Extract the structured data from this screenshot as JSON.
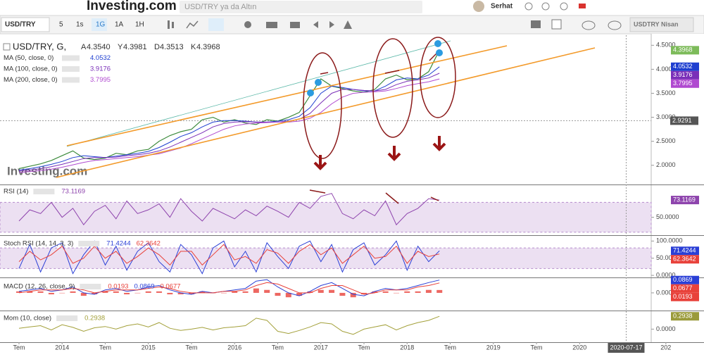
{
  "ui": {
    "logo": "Investing.com",
    "search": "USD/TRY ya da Altın",
    "user": "Serhat",
    "symbol": "USD/TRY",
    "intervals": [
      "5",
      "1s",
      "1G",
      "1A",
      "1H"
    ],
    "active_interval": 2,
    "contract": "USDTRY Nisan",
    "watermark": "Investing.com"
  },
  "chart_data": [
    {
      "type": "line",
      "title": "USD/TRY, G,",
      "ohlc": [
        {
          "label": "A",
          "value": "4.3540"
        },
        {
          "label": "Y",
          "value": "4.3981"
        },
        {
          "label": "D",
          "value": "4.3513"
        },
        {
          "label": "K",
          "value": "4.3968"
        }
      ],
      "x": [
        2013.5,
        2013.625,
        2013.75,
        2013.875,
        2014,
        2014.125,
        2014.25,
        2014.375,
        2014.5,
        2014.625,
        2014.75,
        2014.875,
        2015,
        2015.125,
        2015.25,
        2015.375,
        2015.5,
        2015.625,
        2015.75,
        2015.875,
        2016,
        2016.125,
        2016.25,
        2016.375,
        2016.5,
        2016.625,
        2016.75,
        2016.875,
        2017,
        2017.125,
        2017.25,
        2017.375,
        2017.5,
        2017.625,
        2017.75,
        2017.875,
        2018,
        2018.125,
        2018.25,
        2018.375
      ],
      "xlim": [
        2013.28,
        2020.83
      ],
      "ylim": [
        1.6,
        4.71
      ],
      "yticks": [
        {
          "value": 4.5,
          "label": "4.5000"
        },
        {
          "value": 4,
          "label": "4.0000"
        },
        {
          "value": 3.5,
          "label": "3.5000"
        },
        {
          "value": 3,
          "label": "3.0000"
        },
        {
          "value": 2.5,
          "label": "2.5000"
        },
        {
          "value": 2,
          "label": "2.0000"
        }
      ],
      "cursor": {
        "value": 2.9291
      },
      "series": [
        {
          "color": "#3d8b3d",
          "box": "#7dbb5a",
          "values": [
            1.93,
            1.98,
            2.03,
            2.1,
            2.2,
            2.3,
            2.15,
            2.12,
            2.15,
            2.25,
            2.22,
            2.3,
            2.33,
            2.5,
            2.62,
            2.7,
            2.75,
            2.95,
            3.0,
            2.9,
            2.95,
            2.88,
            2.85,
            2.95,
            2.92,
            3.0,
            3.1,
            3.45,
            3.8,
            3.65,
            3.6,
            3.55,
            3.52,
            3.58,
            3.8,
            3.88,
            3.78,
            3.8,
            3.95,
            4.3968
          ]
        },
        {
          "name": "MA (50, close, 0)",
          "color": "#1f3fd0",
          "box": "#1f3fd0",
          "values": [
            1.9,
            1.93,
            1.97,
            2.02,
            2.08,
            2.16,
            2.2,
            2.18,
            2.16,
            2.19,
            2.22,
            2.25,
            2.29,
            2.37,
            2.48,
            2.6,
            2.68,
            2.8,
            2.9,
            2.93,
            2.93,
            2.92,
            2.9,
            2.9,
            2.92,
            2.95,
            3.02,
            3.2,
            3.5,
            3.65,
            3.62,
            3.58,
            3.55,
            3.55,
            3.65,
            3.78,
            3.82,
            3.8,
            3.88,
            4.0532
          ]
        },
        {
          "name": "MA (100, close, 0)",
          "color": "#7a2fb8",
          "box": "#7a2fb8",
          "values": [
            1.88,
            1.9,
            1.93,
            1.97,
            2.02,
            2.08,
            2.14,
            2.16,
            2.16,
            2.17,
            2.2,
            2.22,
            2.25,
            2.3,
            2.38,
            2.48,
            2.58,
            2.68,
            2.8,
            2.87,
            2.9,
            2.91,
            2.9,
            2.9,
            2.9,
            2.92,
            2.96,
            3.08,
            3.3,
            3.5,
            3.58,
            3.58,
            3.56,
            3.55,
            3.58,
            3.68,
            3.75,
            3.78,
            3.82,
            3.9176
          ]
        },
        {
          "name": "MA (200, close, 0)",
          "color": "#b04ad0",
          "box": "#b04ad0",
          "values": [
            1.85,
            1.87,
            1.89,
            1.92,
            1.96,
            2.01,
            2.06,
            2.1,
            2.12,
            2.14,
            2.16,
            2.18,
            2.21,
            2.24,
            2.3,
            2.36,
            2.45,
            2.55,
            2.65,
            2.75,
            2.82,
            2.86,
            2.88,
            2.89,
            2.9,
            2.9,
            2.92,
            2.98,
            3.1,
            3.28,
            3.42,
            3.5,
            3.52,
            3.53,
            3.55,
            3.6,
            3.66,
            3.7,
            3.74,
            3.7995
          ]
        }
      ]
    },
    {
      "type": "line",
      "title": "RSI (14)",
      "x": [
        2013.5,
        2013.625,
        2013.75,
        2013.875,
        2014,
        2014.125,
        2014.25,
        2014.375,
        2014.5,
        2014.625,
        2014.75,
        2014.875,
        2015,
        2015.125,
        2015.25,
        2015.375,
        2015.5,
        2015.625,
        2015.75,
        2015.875,
        2016,
        2016.125,
        2016.25,
        2016.375,
        2016.5,
        2016.625,
        2016.75,
        2016.875,
        2017,
        2017.125,
        2017.25,
        2017.375,
        2017.5,
        2017.625,
        2017.75,
        2017.875,
        2018,
        2018.125,
        2018.25,
        2018.375
      ],
      "xlim": [
        2013.28,
        2020.83
      ],
      "ylim": [
        26,
        93
      ],
      "yticks": [
        {
          "value": 50,
          "label": "50.0000"
        }
      ],
      "band": [
        30,
        70
      ],
      "series": [
        {
          "color": "#8e44ad",
          "box": "#8e44ad",
          "values": [
            45,
            60,
            55,
            70,
            50,
            62,
            40,
            58,
            66,
            48,
            72,
            55,
            60,
            68,
            50,
            75,
            58,
            45,
            62,
            55,
            48,
            60,
            52,
            65,
            58,
            50,
            70,
            62,
            78,
            82,
            55,
            48,
            60,
            52,
            72,
            40,
            55,
            62,
            75,
            73.1169
          ]
        }
      ]
    },
    {
      "type": "line",
      "title": "Stoch RSI (14, 14, 3, 3)",
      "x": [
        2013.5,
        2013.625,
        2013.75,
        2013.875,
        2014,
        2014.125,
        2014.25,
        2014.375,
        2014.5,
        2014.625,
        2014.75,
        2014.875,
        2015,
        2015.125,
        2015.25,
        2015.375,
        2015.5,
        2015.625,
        2015.75,
        2015.875,
        2016,
        2016.125,
        2016.25,
        2016.375,
        2016.5,
        2016.625,
        2016.75,
        2016.875,
        2017,
        2017.125,
        2017.25,
        2017.375,
        2017.5,
        2017.625,
        2017.75,
        2017.875,
        2018,
        2018.125,
        2018.25,
        2018.375
      ],
      "xlim": [
        2013.28,
        2020.83
      ],
      "ylim": [
        -6,
        115
      ],
      "yticks": [
        {
          "value": 100,
          "label": "100.0000"
        },
        {
          "value": 50,
          "label": "50.0000"
        },
        {
          "value": 0,
          "label": "0.0000"
        }
      ],
      "band": [
        20,
        80
      ],
      "series": [
        {
          "color": "#2a3fd6",
          "box": "#2a3fd6",
          "values": [
            20,
            90,
            10,
            80,
            95,
            5,
            60,
            100,
            30,
            85,
            15,
            70,
            95,
            40,
            10,
            90,
            60,
            5,
            80,
            100,
            25,
            70,
            10,
            95,
            55,
            20,
            85,
            100,
            40,
            90,
            10,
            75,
            95,
            30,
            60,
            100,
            15,
            85,
            40,
            71.4244
          ]
        },
        {
          "color": "#e8413a",
          "box": "#e8413a",
          "values": [
            40,
            70,
            45,
            60,
            85,
            35,
            50,
            85,
            50,
            70,
            35,
            55,
            80,
            60,
            30,
            70,
            70,
            30,
            60,
            90,
            45,
            55,
            35,
            75,
            65,
            35,
            70,
            90,
            60,
            80,
            35,
            60,
            85,
            50,
            55,
            85,
            35,
            70,
            55,
            62.3642
          ]
        }
      ]
    },
    {
      "type": "line",
      "title": "MACD (12, 26, close, 9)",
      "x": [
        2013.5,
        2013.625,
        2013.75,
        2013.875,
        2014,
        2014.125,
        2014.25,
        2014.375,
        2014.5,
        2014.625,
        2014.75,
        2014.875,
        2015,
        2015.125,
        2015.25,
        2015.375,
        2015.5,
        2015.625,
        2015.75,
        2015.875,
        2016,
        2016.125,
        2016.25,
        2016.375,
        2016.5,
        2016.625,
        2016.75,
        2016.875,
        2017,
        2017.125,
        2017.25,
        2017.375,
        2017.5,
        2017.625,
        2017.75,
        2017.875,
        2018,
        2018.125,
        2018.25,
        2018.375
      ],
      "xlim": [
        2013.28,
        2020.83
      ],
      "ylim": [
        -0.12,
        0.1
      ],
      "yticks": [
        {
          "value": 0,
          "label": "0.0000"
        }
      ],
      "series": [
        {
          "style": "bar",
          "color": "#e8413a",
          "box": "#e8413a",
          "values": [
            0.01,
            0.01,
            0.01,
            -0.01,
            0,
            0.01,
            -0.02,
            -0.01,
            0.01,
            0.01,
            -0.01,
            0,
            0.01,
            0.01,
            -0.01,
            -0.01,
            -0.01,
            0.01,
            0,
            0,
            0.01,
            0.01,
            0.03,
            0.02,
            -0.02,
            -0.03,
            -0.02,
            0.01,
            0.02,
            0.02,
            -0.02,
            -0.03,
            -0.01,
            0.01,
            0.01,
            0,
            0.01,
            0.01,
            0.02,
            0.0193
          ]
        },
        {
          "color": "#2a3fd6",
          "box": "#2a3fd6",
          "values": [
            0.01,
            0.02,
            0.03,
            0.01,
            0.02,
            0.04,
            0,
            -0.01,
            0.02,
            0.03,
            0.01,
            0.02,
            0.04,
            0.05,
            0.02,
            0,
            -0.01,
            0.01,
            0,
            0.01,
            0.02,
            0.03,
            0.08,
            0.09,
            0.04,
            0,
            -0.02,
            0.01,
            0.05,
            0.07,
            0.03,
            -0.01,
            -0.02,
            0.01,
            0.03,
            0.02,
            0.03,
            0.05,
            0.07,
            0.0869
          ]
        },
        {
          "color": "#e8413a",
          "box": "#e8413a",
          "values": [
            0,
            0.01,
            0.02,
            0.02,
            0.02,
            0.03,
            0.02,
            0,
            0.01,
            0.02,
            0.02,
            0.02,
            0.03,
            0.04,
            0.03,
            0.01,
            0,
            0,
            0,
            0.01,
            0.01,
            0.02,
            0.05,
            0.07,
            0.06,
            0.03,
            0,
            0,
            0.03,
            0.05,
            0.05,
            0.02,
            -0.01,
            0,
            0.02,
            0.02,
            0.02,
            0.04,
            0.05,
            0.0677
          ]
        }
      ]
    },
    {
      "type": "line",
      "title": "Mom (10, close)",
      "x": [
        2013.5,
        2013.625,
        2013.75,
        2013.875,
        2014,
        2014.125,
        2014.25,
        2014.375,
        2014.5,
        2014.625,
        2014.75,
        2014.875,
        2015,
        2015.125,
        2015.25,
        2015.375,
        2015.5,
        2015.625,
        2015.75,
        2015.875,
        2016,
        2016.125,
        2016.25,
        2016.375,
        2016.5,
        2016.625,
        2016.75,
        2016.875,
        2017,
        2017.125,
        2017.25,
        2017.375,
        2017.5,
        2017.625,
        2017.75,
        2017.875,
        2018,
        2018.125,
        2018.25,
        2018.375
      ],
      "xlim": [
        2013.28,
        2020.83
      ],
      "ylim": [
        -0.3,
        0.41
      ],
      "yticks": [
        {
          "value": 0,
          "label": "0.0000"
        }
      ],
      "xticks": [
        {
          "value": 2013.5,
          "label": "Tem"
        },
        2014,
        {
          "value": 2014.5,
          "label": "Tem"
        },
        2015,
        {
          "value": 2015.5,
          "label": "Tem"
        },
        2016,
        {
          "value": 2016.5,
          "label": "Tem"
        },
        2017,
        {
          "value": 2017.5,
          "label": "Tem"
        },
        2018,
        {
          "value": 2018.5,
          "label": "Tem"
        },
        2019,
        {
          "value": 2019.5,
          "label": "Tem"
        },
        2020,
        {
          "value": 2021,
          "label": "202"
        }
      ],
      "cursor_x": {
        "value": 2020.54,
        "label": "2020-07-17"
      },
      "series": [
        {
          "color": "#a3a03a",
          "box": "#9a9a3a",
          "values": [
            0.02,
            0.05,
            0.08,
            -0.02,
            0.1,
            0.04,
            -0.05,
            0.03,
            0.06,
            0,
            0.08,
            0.12,
            0.05,
            0.15,
            0.02,
            -0.03,
            0,
            0.04,
            -0.02,
            0.03,
            0.05,
            0.08,
            0.25,
            0.2,
            -0.05,
            -0.1,
            -0.03,
            0.05,
            0.15,
            0.12,
            -0.05,
            -0.12,
            0,
            0.05,
            0.1,
            -0.02,
            0.08,
            0.15,
            0.2,
            0.2938
          ]
        }
      ]
    }
  ]
}
